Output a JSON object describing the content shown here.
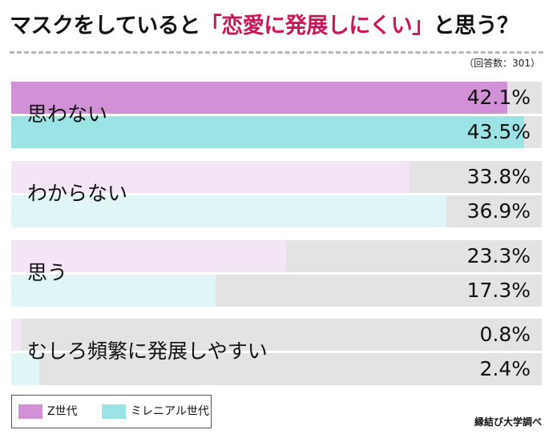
{
  "title": {
    "prefix": "マスクをしていると",
    "highlight": "「恋愛に発展しにくい」",
    "suffix": "と思う？"
  },
  "sample_note": "（回答数：301）",
  "source": "縁結び大学調べ",
  "colors": {
    "z_gen_main": "#d291d6",
    "z_gen_light": "#f3e5f5",
    "millennial_main": "#9ce3e6",
    "millennial_light": "#dff5f6",
    "track": "#e3e3e3",
    "title_highlight": "#c8185a"
  },
  "chart_data": {
    "type": "bar",
    "orientation": "horizontal",
    "categories": [
      "思わない",
      "わからない",
      "思う",
      "むしろ頻繁に発展しやすい"
    ],
    "series": [
      {
        "name": "Z世代",
        "values": [
          42.1,
          33.8,
          23.3,
          0.8
        ],
        "labels": [
          "42.1%",
          "33.8%",
          "23.3%",
          "0.8%"
        ]
      },
      {
        "name": "ミレニアル世代",
        "values": [
          43.5,
          36.9,
          17.3,
          2.4
        ],
        "labels": [
          "43.5%",
          "36.9%",
          "17.3%",
          "2.4%"
        ]
      }
    ],
    "xlim": [
      0,
      45
    ],
    "legend": "bottom-left"
  }
}
